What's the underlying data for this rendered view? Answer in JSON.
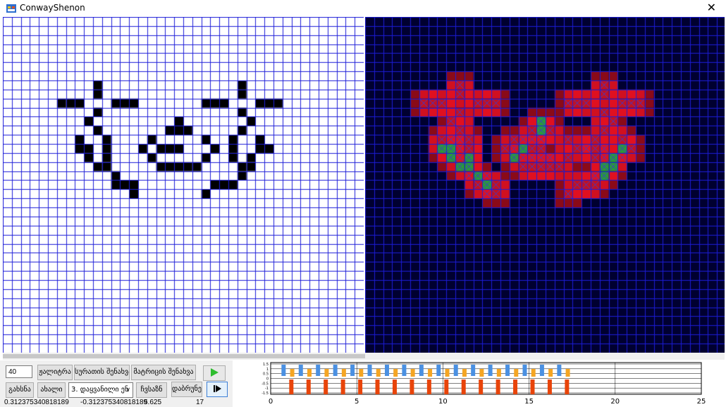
{
  "window": {
    "title": "ConwayShenon",
    "close_glyph": "✕"
  },
  "controls": {
    "size_input": "40",
    "generate_button": "ჟალიტრა",
    "save_image_button": "სურათის შენახვა",
    "save_matrix_button": "მატრიცის შენახვა",
    "open_button": "გახსნა",
    "new_button": "ახალი",
    "mode_select": "3. დაყვანილი ენ",
    "load_button": "ჩვსაზნ",
    "reset_button": "დაბრუნე"
  },
  "status": {
    "value1": "0.312375340818189",
    "value2": "-0.312375340818189",
    "value3": "5.625",
    "value4": "17"
  },
  "timeline": {
    "x_ticks": [
      "0",
      "5",
      "10",
      "15",
      "20",
      "25"
    ],
    "y_ticks": [
      "1.5",
      "1",
      "0.5",
      "0",
      "-0.5",
      "-1",
      "-1.5"
    ],
    "colors": {
      "blue": "#4a90e2",
      "orange": "#f5a623",
      "red": "#e8440a"
    }
  },
  "colors": {
    "grid_line": "#1c1cd8",
    "cell_on": "#000000",
    "right_bg": "#000030"
  },
  "grid": {
    "cols": 40,
    "rows": 37
  },
  "pattern_rows": [
    "........................................",
    "........................................",
    "........................................",
    "........................................",
    "........................................",
    "........................................",
    "........................................",
    "..........#...............#.............",
    "..........#...............#.............",
    "......###...###.......###...###.........",
    "..........#...............#.............",
    ".........#.........#.......#............",
    "..........#.......###.....#.............",
    "........#..#....#.....#..#..#...........",
    "........##.#...#.###...#.#..##..........",
    ".........#.#....#.....#..#.#............",
    "..........##.....#####....##............",
    "............#.............#.............",
    "............###........###..............",
    "..............#.......#.................",
    "........................................",
    "........................................",
    "........................................",
    "........................................",
    "........................................",
    "........................................",
    "........................................",
    "........................................",
    "........................................",
    "........................................",
    "........................................",
    "........................................",
    "........................................",
    "........................................",
    "........................................",
    "........................................",
    "........................................"
  ]
}
